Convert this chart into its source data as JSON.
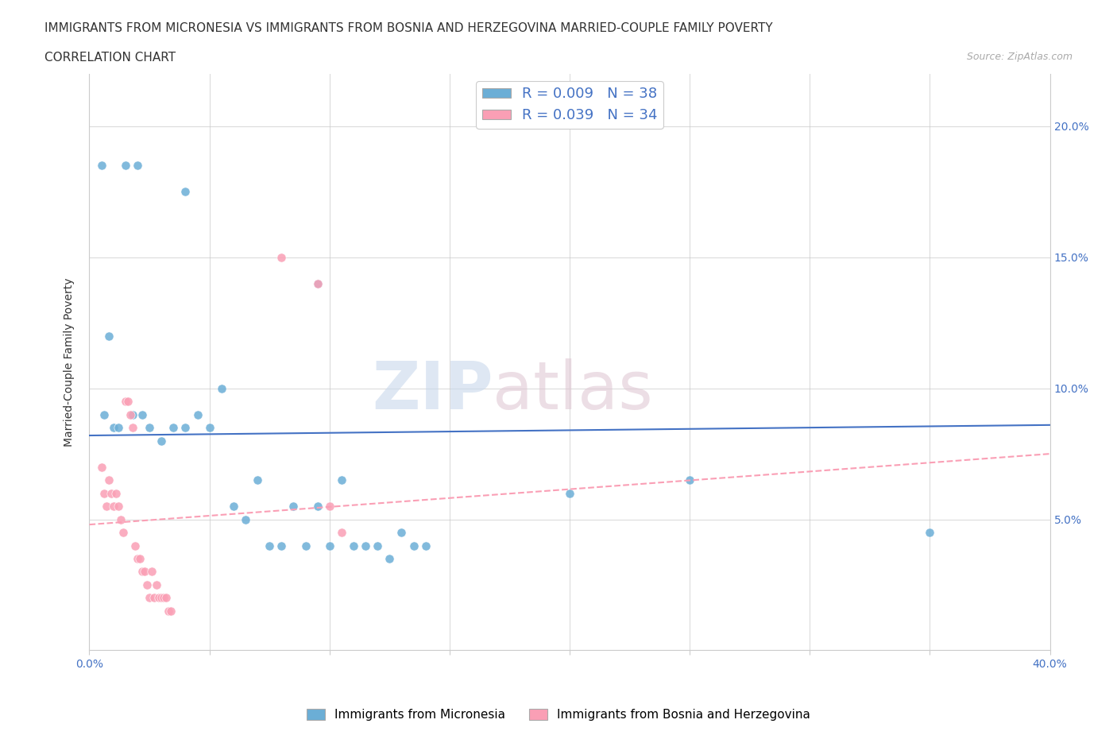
{
  "title_line1": "IMMIGRANTS FROM MICRONESIA VS IMMIGRANTS FROM BOSNIA AND HERZEGOVINA MARRIED-COUPLE FAMILY POVERTY",
  "title_line2": "CORRELATION CHART",
  "source_text": "Source: ZipAtlas.com",
  "ylabel": "Married-Couple Family Poverty",
  "xlim": [
    0.0,
    0.4
  ],
  "ylim": [
    0.0,
    0.22
  ],
  "x_ticks": [
    0.0,
    0.05,
    0.1,
    0.15,
    0.2,
    0.25,
    0.3,
    0.35,
    0.4
  ],
  "x_tick_labels": [
    "0.0%",
    "",
    "",
    "",
    "",
    "",
    "",
    "",
    "40.0%"
  ],
  "y_ticks": [
    0.0,
    0.05,
    0.1,
    0.15,
    0.2
  ],
  "y_tick_labels_right": [
    "",
    "5.0%",
    "10.0%",
    "15.0%",
    "20.0%"
  ],
  "color_blue": "#6baed6",
  "color_pink": "#fa9fb5",
  "legend_blue_label": "R = 0.009   N = 38",
  "legend_pink_label": "R = 0.039   N = 34",
  "legend_r_color": "#4472c4",
  "blue_scatter_x": [
    0.008,
    0.02,
    0.04,
    0.015,
    0.095,
    0.006,
    0.01,
    0.012,
    0.018,
    0.022,
    0.025,
    0.03,
    0.035,
    0.04,
    0.045,
    0.05,
    0.055,
    0.06,
    0.065,
    0.07,
    0.075,
    0.08,
    0.085,
    0.09,
    0.095,
    0.1,
    0.105,
    0.11,
    0.115,
    0.12,
    0.125,
    0.13,
    0.135,
    0.14,
    0.2,
    0.25,
    0.35,
    0.005
  ],
  "blue_scatter_y": [
    0.12,
    0.185,
    0.175,
    0.185,
    0.14,
    0.09,
    0.085,
    0.085,
    0.09,
    0.09,
    0.085,
    0.08,
    0.085,
    0.085,
    0.09,
    0.085,
    0.1,
    0.055,
    0.05,
    0.065,
    0.04,
    0.04,
    0.055,
    0.04,
    0.055,
    0.04,
    0.065,
    0.04,
    0.04,
    0.04,
    0.035,
    0.045,
    0.04,
    0.04,
    0.06,
    0.065,
    0.045,
    0.185
  ],
  "pink_scatter_x": [
    0.005,
    0.006,
    0.007,
    0.008,
    0.009,
    0.01,
    0.011,
    0.012,
    0.013,
    0.014,
    0.015,
    0.016,
    0.017,
    0.018,
    0.019,
    0.02,
    0.021,
    0.022,
    0.023,
    0.024,
    0.025,
    0.026,
    0.027,
    0.028,
    0.029,
    0.03,
    0.031,
    0.032,
    0.033,
    0.034,
    0.08,
    0.095,
    0.1,
    0.105
  ],
  "pink_scatter_y": [
    0.07,
    0.06,
    0.055,
    0.065,
    0.06,
    0.055,
    0.06,
    0.055,
    0.05,
    0.045,
    0.095,
    0.095,
    0.09,
    0.085,
    0.04,
    0.035,
    0.035,
    0.03,
    0.03,
    0.025,
    0.02,
    0.03,
    0.02,
    0.025,
    0.02,
    0.02,
    0.02,
    0.02,
    0.015,
    0.015,
    0.15,
    0.14,
    0.055,
    0.045
  ],
  "blue_line_x": [
    0.0,
    0.4
  ],
  "blue_line_y": [
    0.082,
    0.086
  ],
  "pink_line_x": [
    0.0,
    0.4
  ],
  "pink_line_y": [
    0.048,
    0.075
  ],
  "grid_color": "#cccccc",
  "bg_color": "#ffffff"
}
